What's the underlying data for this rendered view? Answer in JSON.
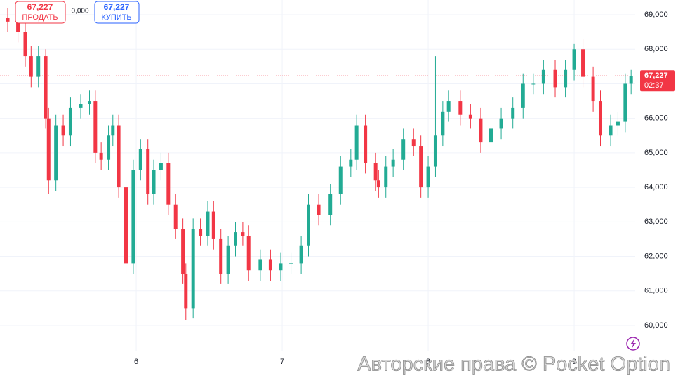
{
  "chart_data": {
    "type": "candlestick",
    "x": [
      5.12,
      5.19,
      5.24,
      5.28,
      5.33,
      5.38,
      5.4,
      5.45,
      5.5,
      5.55,
      5.62,
      5.68,
      5.72,
      5.76,
      5.81,
      5.84,
      5.88,
      5.93,
      5.98,
      6.03,
      6.08,
      6.12,
      6.17,
      6.22,
      6.27,
      6.32,
      6.34,
      6.39,
      6.44,
      6.49,
      6.53,
      6.58,
      6.63,
      6.68,
      6.73,
      6.77,
      6.85,
      6.92,
      6.99,
      7.06,
      7.13,
      7.18,
      7.25,
      7.33,
      7.4,
      7.47,
      7.51,
      7.57,
      7.64,
      7.66,
      7.71,
      7.76,
      7.83,
      7.9,
      7.95,
      8.0,
      8.05,
      8.1,
      8.14,
      8.22,
      8.29,
      8.36,
      8.43,
      8.5,
      8.58,
      8.65,
      8.72,
      8.79,
      8.87,
      8.94,
      9.0,
      9.06,
      9.13,
      9.18,
      9.25,
      9.3,
      9.35,
      9.39
    ],
    "open": [
      68900,
      68800,
      68500,
      67800,
      67200,
      67800,
      66000,
      64200,
      65800,
      65500,
      66300,
      66400,
      66500,
      65000,
      64800,
      65500,
      65800,
      64000,
      61800,
      64500,
      65100,
      63800,
      64500,
      64700,
      63500,
      62800,
      61500,
      60500,
      62800,
      62600,
      63300,
      62500,
      61500,
      62300,
      62700,
      62600,
      61600,
      61900,
      61600,
      61800,
      61800,
      62300,
      63500,
      63200,
      63800,
      64600,
      64800,
      65800,
      64700,
      64200,
      64000,
      64600,
      64800,
      65400,
      65200,
      64000,
      64600,
      65500,
      66200,
      66500,
      66100,
      66000,
      65300,
      65700,
      66000,
      66300,
      67000,
      67000,
      67400,
      66900,
      67400,
      68000,
      67200,
      66500,
      65500,
      65800,
      65900,
      67000
    ],
    "high": [
      69200,
      69100,
      68800,
      68100,
      68100,
      68000,
      66300,
      66100,
      66100,
      66600,
      66700,
      66800,
      66800,
      65300,
      65800,
      66100,
      66100,
      64300,
      64800,
      65400,
      65400,
      64800,
      65000,
      65000,
      63800,
      63100,
      61800,
      63100,
      63100,
      63600,
      63600,
      62800,
      62600,
      63000,
      63000,
      62900,
      62200,
      62200,
      62100,
      62100,
      62600,
      63800,
      63800,
      64100,
      64900,
      65100,
      66100,
      66100,
      65000,
      64500,
      64900,
      65100,
      65700,
      65700,
      65500,
      64900,
      67800,
      66500,
      66800,
      66800,
      66400,
      66300,
      66000,
      66300,
      66600,
      67300,
      67300,
      67700,
      67700,
      67700,
      68150,
      68300,
      67500,
      66800,
      66100,
      66200,
      67300,
      67400
    ],
    "low": [
      68500,
      68200,
      67500,
      66900,
      66900,
      65700,
      63800,
      63900,
      65200,
      65200,
      66000,
      66100,
      64700,
      64500,
      64500,
      65200,
      63700,
      61500,
      61500,
      64200,
      63500,
      63500,
      64200,
      63200,
      62500,
      61200,
      60150,
      60200,
      62300,
      62300,
      62200,
      61200,
      61200,
      62000,
      62300,
      61300,
      61300,
      61300,
      61300,
      61500,
      61500,
      62000,
      62900,
      62900,
      63500,
      64300,
      64500,
      64400,
      63900,
      63700,
      63700,
      64300,
      64500,
      64900,
      63700,
      63700,
      64300,
      65200,
      65900,
      65800,
      65700,
      65000,
      65000,
      65400,
      65700,
      66000,
      66700,
      66700,
      66600,
      66600,
      67100,
      66900,
      66200,
      65200,
      65200,
      65500,
      65600,
      66700
    ],
    "close": [
      68800,
      68500,
      67800,
      67200,
      67800,
      66000,
      64200,
      65800,
      65500,
      66300,
      66400,
      66500,
      65000,
      64800,
      65500,
      65800,
      64000,
      61800,
      64500,
      65100,
      63800,
      64500,
      64700,
      63500,
      62800,
      61500,
      60500,
      62800,
      62600,
      63300,
      62500,
      61500,
      62300,
      62700,
      62600,
      61600,
      61900,
      61600,
      61800,
      61800,
      62300,
      63500,
      63200,
      63800,
      64600,
      64800,
      65800,
      64700,
      64200,
      64000,
      64600,
      64800,
      65400,
      65200,
      64000,
      64600,
      65500,
      66200,
      66500,
      66100,
      66000,
      65300,
      65700,
      66000,
      66300,
      67000,
      67000,
      67400,
      66900,
      67400,
      68000,
      67200,
      66500,
      65500,
      65800,
      65900,
      67000,
      67227
    ],
    "up_color": "#22ab94",
    "down_color": "#f23645",
    "xlim": [
      5.067,
      9.418
    ],
    "xticks": [
      6,
      7,
      8,
      9
    ],
    "ylim": [
      59268,
      69427
    ],
    "yticks": [
      {
        "value": 60000,
        "label": "60,000"
      },
      {
        "value": 61000,
        "label": "61,000"
      },
      {
        "value": 62000,
        "label": "62,000"
      },
      {
        "value": 63000,
        "label": "63,000"
      },
      {
        "value": 64000,
        "label": "64,000"
      },
      {
        "value": 65000,
        "label": "65,000"
      },
      {
        "value": 66000,
        "label": "66,000"
      },
      {
        "value": 67000,
        "label": "67,000"
      },
      {
        "value": 68000,
        "label": "68,000"
      },
      {
        "value": 69000,
        "label": "69,000"
      }
    ],
    "grid": true,
    "current_price": {
      "value": 67227,
      "label": "67,227"
    },
    "timer": "02:37"
  },
  "trade_panel": {
    "sell_label": "ПРОДАТЬ",
    "spread": "0,000",
    "buy_label": "КУПИТЬ"
  },
  "watermark": "Авторские права © Pocket Option"
}
